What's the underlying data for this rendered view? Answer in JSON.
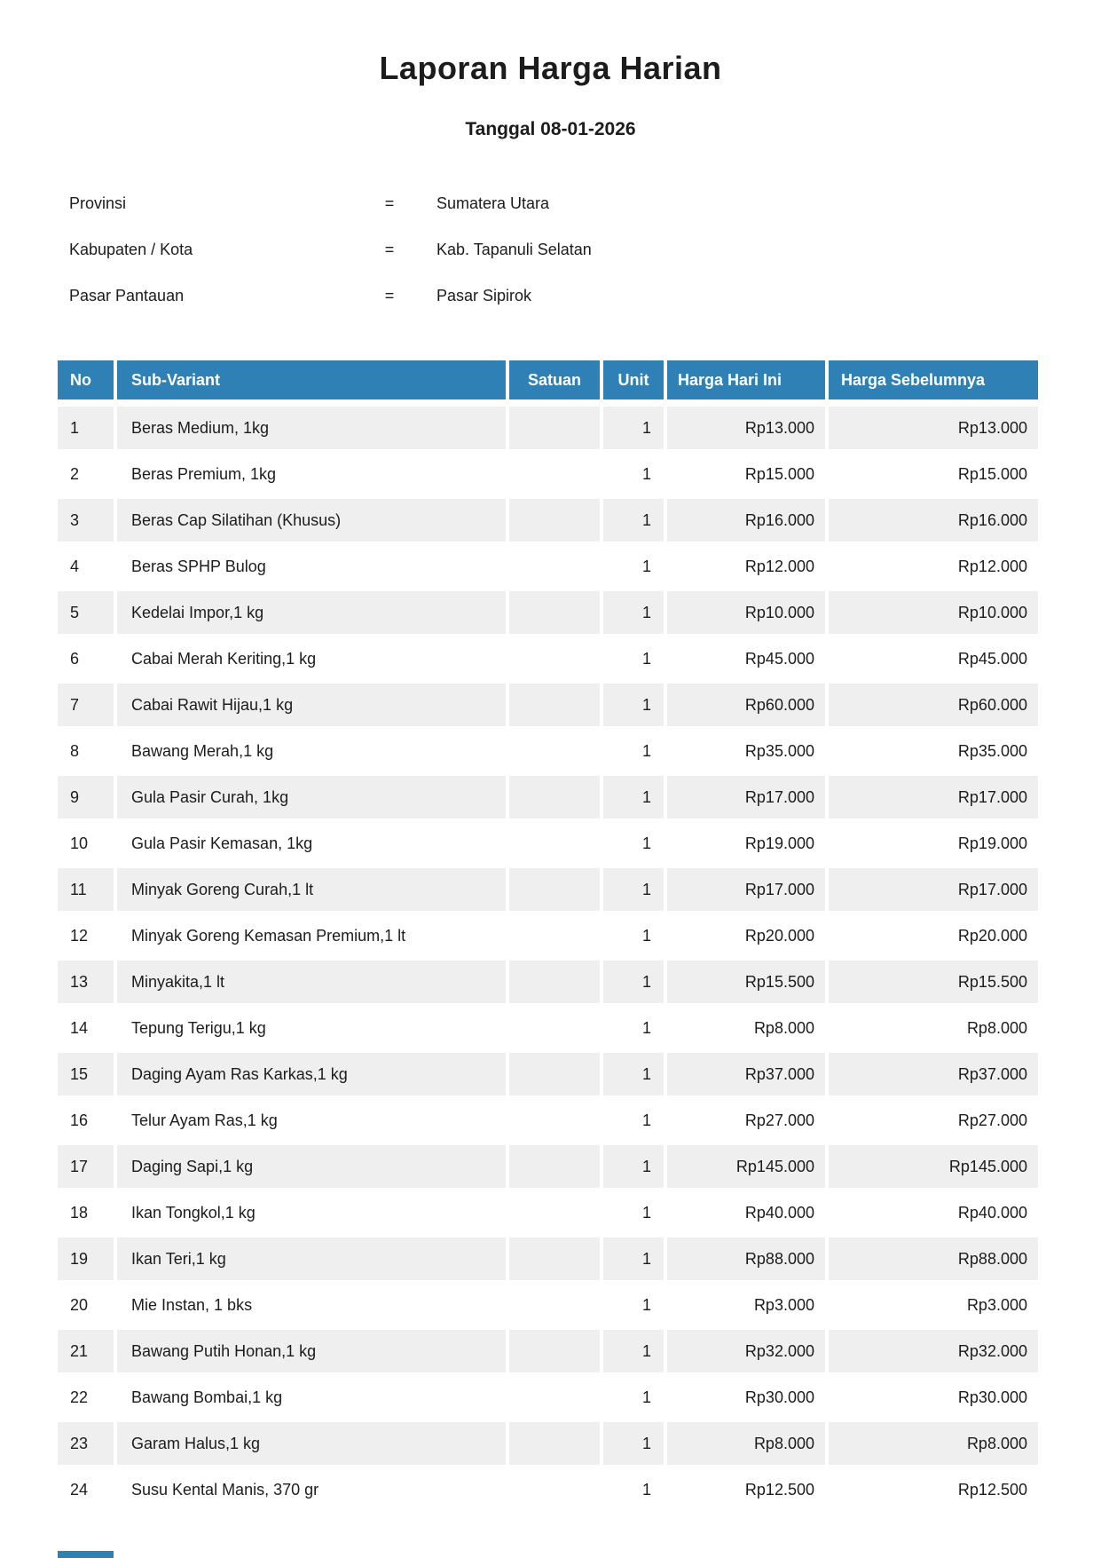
{
  "report": {
    "title": "Laporan Harga Harian",
    "subtitle": "Tanggal 08-01-2026",
    "meta": [
      {
        "label": "Provinsi",
        "separator": "=",
        "value": "Sumatera Utara"
      },
      {
        "label": "Kabupaten / Kota",
        "separator": "=",
        "value": "Kab. Tapanuli Selatan"
      },
      {
        "label": "Pasar Pantauan",
        "separator": "=",
        "value": "Pasar Sipirok"
      }
    ],
    "table": {
      "columns": [
        "No",
        "Sub-Variant",
        "Satuan",
        "Unit",
        "Harga Hari Ini",
        "Harga Sebelumnya"
      ],
      "rows": [
        {
          "no": "1",
          "sub_variant": "Beras Medium, 1kg",
          "satuan": "",
          "unit": "1",
          "harga_hari_ini": "Rp13.000",
          "harga_sebelumnya": "Rp13.000"
        },
        {
          "no": "2",
          "sub_variant": "Beras Premium, 1kg",
          "satuan": "",
          "unit": "1",
          "harga_hari_ini": "Rp15.000",
          "harga_sebelumnya": "Rp15.000"
        },
        {
          "no": "3",
          "sub_variant": "Beras Cap Silatihan (Khusus)",
          "satuan": "",
          "unit": "1",
          "harga_hari_ini": "Rp16.000",
          "harga_sebelumnya": "Rp16.000"
        },
        {
          "no": "4",
          "sub_variant": "Beras SPHP Bulog",
          "satuan": "",
          "unit": "1",
          "harga_hari_ini": "Rp12.000",
          "harga_sebelumnya": "Rp12.000"
        },
        {
          "no": "5",
          "sub_variant": "Kedelai Impor,1 kg",
          "satuan": "",
          "unit": "1",
          "harga_hari_ini": "Rp10.000",
          "harga_sebelumnya": "Rp10.000"
        },
        {
          "no": "6",
          "sub_variant": "Cabai Merah Keriting,1 kg",
          "satuan": "",
          "unit": "1",
          "harga_hari_ini": "Rp45.000",
          "harga_sebelumnya": "Rp45.000"
        },
        {
          "no": "7",
          "sub_variant": "Cabai Rawit Hijau,1 kg",
          "satuan": "",
          "unit": "1",
          "harga_hari_ini": "Rp60.000",
          "harga_sebelumnya": "Rp60.000"
        },
        {
          "no": "8",
          "sub_variant": "Bawang Merah,1 kg",
          "satuan": "",
          "unit": "1",
          "harga_hari_ini": "Rp35.000",
          "harga_sebelumnya": "Rp35.000"
        },
        {
          "no": "9",
          "sub_variant": "Gula Pasir Curah, 1kg",
          "satuan": "",
          "unit": "1",
          "harga_hari_ini": "Rp17.000",
          "harga_sebelumnya": "Rp17.000"
        },
        {
          "no": "10",
          "sub_variant": "Gula Pasir Kemasan, 1kg",
          "satuan": "",
          "unit": "1",
          "harga_hari_ini": "Rp19.000",
          "harga_sebelumnya": "Rp19.000"
        },
        {
          "no": "11",
          "sub_variant": "Minyak Goreng Curah,1 lt",
          "satuan": "",
          "unit": "1",
          "harga_hari_ini": "Rp17.000",
          "harga_sebelumnya": "Rp17.000"
        },
        {
          "no": "12",
          "sub_variant": "Minyak Goreng Kemasan Premium,1 lt",
          "satuan": "",
          "unit": "1",
          "harga_hari_ini": "Rp20.000",
          "harga_sebelumnya": "Rp20.000"
        },
        {
          "no": "13",
          "sub_variant": "Minyakita,1 lt",
          "satuan": "",
          "unit": "1",
          "harga_hari_ini": "Rp15.500",
          "harga_sebelumnya": "Rp15.500"
        },
        {
          "no": "14",
          "sub_variant": "Tepung Terigu,1 kg",
          "satuan": "",
          "unit": "1",
          "harga_hari_ini": "Rp8.000",
          "harga_sebelumnya": "Rp8.000"
        },
        {
          "no": "15",
          "sub_variant": "Daging Ayam Ras Karkas,1 kg",
          "satuan": "",
          "unit": "1",
          "harga_hari_ini": "Rp37.000",
          "harga_sebelumnya": "Rp37.000"
        },
        {
          "no": "16",
          "sub_variant": "Telur Ayam Ras,1 kg",
          "satuan": "",
          "unit": "1",
          "harga_hari_ini": "Rp27.000",
          "harga_sebelumnya": "Rp27.000"
        },
        {
          "no": "17",
          "sub_variant": "Daging Sapi,1 kg",
          "satuan": "",
          "unit": "1",
          "harga_hari_ini": "Rp145.000",
          "harga_sebelumnya": "Rp145.000"
        },
        {
          "no": "18",
          "sub_variant": "Ikan Tongkol,1 kg",
          "satuan": "",
          "unit": "1",
          "harga_hari_ini": "Rp40.000",
          "harga_sebelumnya": "Rp40.000"
        },
        {
          "no": "19",
          "sub_variant": "Ikan Teri,1 kg",
          "satuan": "",
          "unit": "1",
          "harga_hari_ini": "Rp88.000",
          "harga_sebelumnya": "Rp88.000"
        },
        {
          "no": "20",
          "sub_variant": "Mie Instan, 1 bks",
          "satuan": "",
          "unit": "1",
          "harga_hari_ini": "Rp3.000",
          "harga_sebelumnya": "Rp3.000"
        },
        {
          "no": "21",
          "sub_variant": "Bawang Putih Honan,1 kg",
          "satuan": "",
          "unit": "1",
          "harga_hari_ini": "Rp32.000",
          "harga_sebelumnya": "Rp32.000"
        },
        {
          "no": "22",
          "sub_variant": "Bawang Bombai,1 kg",
          "satuan": "",
          "unit": "1",
          "harga_hari_ini": "Rp30.000",
          "harga_sebelumnya": "Rp30.000"
        },
        {
          "no": "23",
          "sub_variant": "Garam Halus,1 kg",
          "satuan": "",
          "unit": "1",
          "harga_hari_ini": "Rp8.000",
          "harga_sebelumnya": "Rp8.000"
        },
        {
          "no": "24",
          "sub_variant": "Susu Kental Manis, 370 gr",
          "satuan": "",
          "unit": "1",
          "harga_hari_ini": "Rp12.500",
          "harga_sebelumnya": "Rp12.500"
        }
      ]
    },
    "colors": {
      "header_blue": "#2e80b5",
      "row_stripe": "#efefef",
      "header_text": "#ffffff"
    }
  }
}
